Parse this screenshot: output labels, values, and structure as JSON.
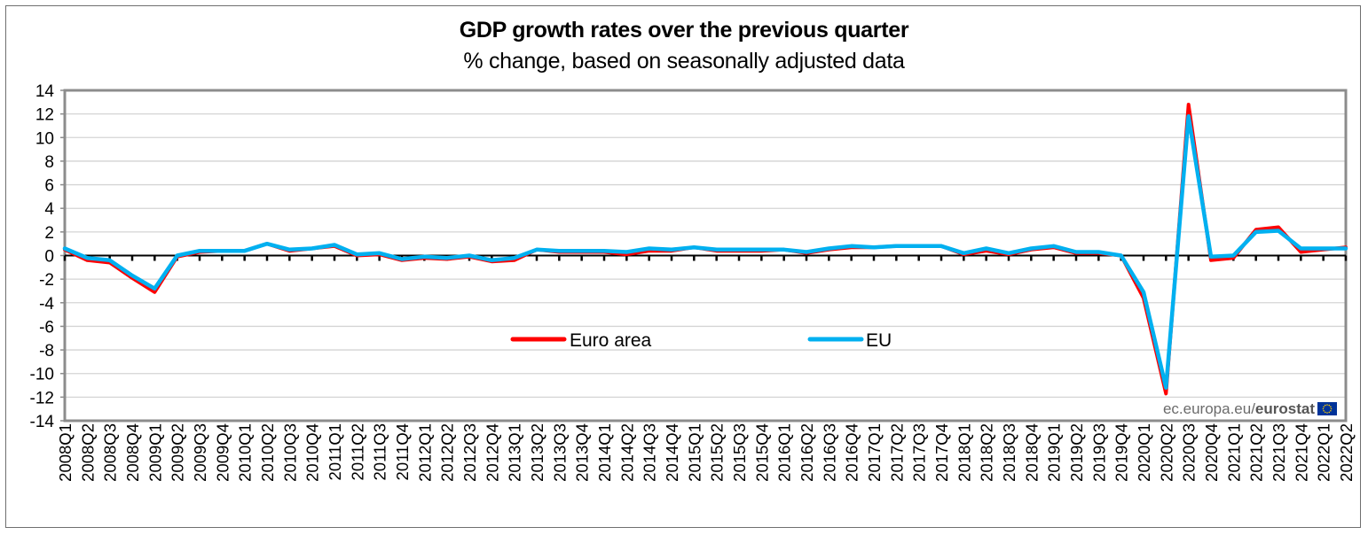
{
  "chart_data": {
    "type": "line",
    "title": "GDP growth rates over the previous quarter",
    "subtitle": "% change, based on seasonally adjusted data",
    "xlabel": "",
    "ylabel": "",
    "ylim": [
      -14,
      14
    ],
    "yticks": [
      14,
      12,
      10,
      8,
      6,
      4,
      2,
      0,
      -2,
      -4,
      -6,
      -8,
      -10,
      -12,
      -14
    ],
    "grid": true,
    "legend_position": "center",
    "source": {
      "prefix": "ec.europa.eu/",
      "brand": "eurostat"
    },
    "categories": [
      "2008Q1",
      "2008Q2",
      "2008Q3",
      "2008Q4",
      "2009Q1",
      "2009Q2",
      "2009Q3",
      "2009Q4",
      "2010Q1",
      "2010Q2",
      "2010Q3",
      "2010Q4",
      "2011Q1",
      "2011Q2",
      "2011Q3",
      "2011Q4",
      "2012Q1",
      "2012Q2",
      "2012Q3",
      "2012Q4",
      "2013Q1",
      "2013Q2",
      "2013Q3",
      "2013Q4",
      "2014Q1",
      "2014Q2",
      "2014Q3",
      "2014Q4",
      "2015Q1",
      "2015Q2",
      "2015Q3",
      "2015Q4",
      "2016Q1",
      "2016Q2",
      "2016Q3",
      "2016Q4",
      "2017Q1",
      "2017Q2",
      "2017Q3",
      "2017Q4",
      "2018Q1",
      "2018Q2",
      "2018Q3",
      "2018Q4",
      "2019Q1",
      "2019Q2",
      "2019Q3",
      "2019Q4",
      "2020Q1",
      "2020Q2",
      "2020Q3",
      "2020Q4",
      "2021Q1",
      "2021Q2",
      "2021Q3",
      "2021Q4",
      "2022Q1",
      "2022Q2"
    ],
    "series": [
      {
        "name": "Euro area",
        "color": "#ff0000",
        "values": [
          0.5,
          -0.4,
          -0.6,
          -1.9,
          -3.1,
          -0.1,
          0.3,
          0.4,
          0.4,
          1.0,
          0.4,
          0.6,
          0.8,
          0.0,
          0.1,
          -0.4,
          -0.2,
          -0.3,
          -0.1,
          -0.5,
          -0.4,
          0.5,
          0.3,
          0.3,
          0.3,
          0.1,
          0.4,
          0.4,
          0.7,
          0.4,
          0.4,
          0.4,
          0.5,
          0.2,
          0.5,
          0.7,
          0.7,
          0.8,
          0.8,
          0.8,
          0.1,
          0.4,
          0.1,
          0.5,
          0.7,
          0.2,
          0.2,
          0.0,
          -3.6,
          -11.7,
          12.8,
          -0.4,
          -0.2,
          2.2,
          2.4,
          0.3,
          0.5,
          0.7
        ]
      },
      {
        "name": "EU",
        "color": "#00b0f0",
        "values": [
          0.6,
          -0.2,
          -0.4,
          -1.7,
          -2.8,
          0.0,
          0.4,
          0.4,
          0.4,
          1.0,
          0.5,
          0.6,
          0.9,
          0.1,
          0.2,
          -0.3,
          -0.1,
          -0.2,
          0.0,
          -0.4,
          -0.2,
          0.5,
          0.4,
          0.4,
          0.4,
          0.3,
          0.6,
          0.5,
          0.7,
          0.5,
          0.5,
          0.5,
          0.5,
          0.3,
          0.6,
          0.8,
          0.7,
          0.8,
          0.8,
          0.8,
          0.2,
          0.6,
          0.2,
          0.6,
          0.8,
          0.3,
          0.3,
          0.0,
          -3.1,
          -11.2,
          11.8,
          -0.1,
          0.0,
          2.0,
          2.1,
          0.6,
          0.6,
          0.6
        ]
      }
    ]
  }
}
